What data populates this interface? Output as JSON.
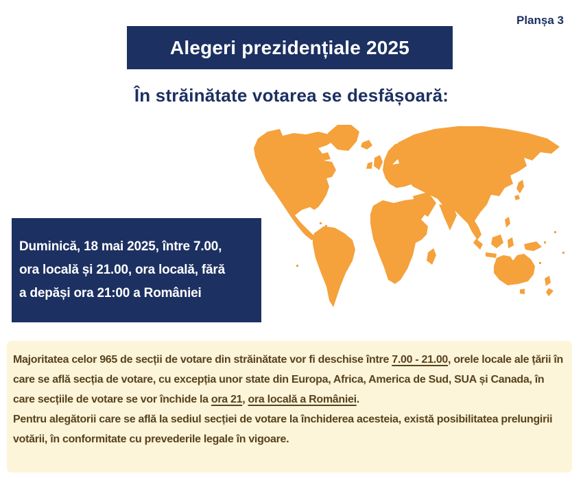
{
  "colors": {
    "navy": "#1c3061",
    "orange": "#f5a13c",
    "cream": "#fcf5d9",
    "brown_text": "#58421d",
    "white": "#ffffff"
  },
  "plate_label": "Planșa 3",
  "title_banner": {
    "text": "Alegeri prezidențiale 2025"
  },
  "subtitle": "În străinătate votarea se desfășoară:",
  "map": {
    "label": "world-map",
    "color": "#f5a13c"
  },
  "schedule_box": {
    "lines": [
      "Duminică, 18 mai 2025, între 7.00,",
      "ora locală și 21.00, ora locală, fără",
      "a depăși ora 21:00 a României"
    ]
  },
  "info_box": {
    "paragraph1": [
      {
        "t": "Majoritatea celor 965 de secții de votare din străinătate vor fi deschise între "
      },
      {
        "t": "7.00 - 21.00",
        "u": true
      },
      {
        "t": ", orele locale ale țării în care se află secția de votare, cu excepția unor state din Europa, Africa, America de Sud, SUA și Canada, în care secțiile de votare se vor închide la "
      },
      {
        "t": "ora 21",
        "u": true
      },
      {
        "t": ", "
      },
      {
        "t": "ora locală a României",
        "u": true
      },
      {
        "t": "."
      }
    ],
    "paragraph2": [
      {
        "t": "Pentru alegătorii care se află la sediul secției de votare la închiderea acesteia, există posibilitatea prelungirii votării, în conformitate cu prevederile legale în vigoare."
      }
    ]
  }
}
